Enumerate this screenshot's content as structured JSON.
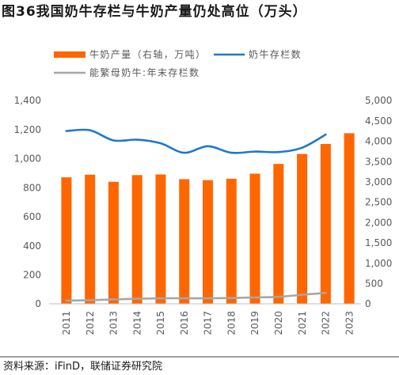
{
  "source": "资料来源：iFinD，联储证券研究院",
  "colors": {
    "axis": "#BFBFBF",
    "divider": "#404040"
  },
  "chart_data": {
    "type": "bar",
    "title": "图36我国奶牛存栏与牛奶产量仍处高位（万头）",
    "categories": [
      "2011",
      "2012",
      "2013",
      "2014",
      "2015",
      "2016",
      "2017",
      "2018",
      "2019",
      "2020",
      "2021",
      "2022",
      "2023"
    ],
    "series": [
      {
        "name": "牛奶产量（右轴，万吨）",
        "type": "bar",
        "axis": "right",
        "color": "#FF6600",
        "values": [
          3110,
          3175,
          3000,
          3165,
          3180,
          3065,
          3040,
          3075,
          3200,
          3440,
          3685,
          3930,
          4195
        ]
      },
      {
        "name": "奶牛存栏数",
        "type": "line",
        "axis": "left",
        "color": "#1F78C8",
        "values": [
          1190,
          1195,
          1125,
          1130,
          1105,
          1040,
          1085,
          1040,
          1048,
          1045,
          1075,
          1165,
          null
        ]
      },
      {
        "name": "能繁母奶牛:年末存栏数",
        "type": "line",
        "axis": "left",
        "color": "#A6A6A6",
        "values": [
          22,
          25,
          30,
          35,
          38,
          38,
          38,
          40,
          44,
          48,
          62,
          75,
          null
        ]
      }
    ],
    "left_axis": {
      "range": [
        0,
        1400
      ],
      "ticks": [
        "0",
        "200",
        "400",
        "600",
        "800",
        "1,000",
        "1,200",
        "1,400"
      ]
    },
    "right_axis": {
      "range": [
        0,
        5000
      ],
      "ticks": [
        "0",
        "500",
        "1,000",
        "1,500",
        "2,000",
        "2,500",
        "3,000",
        "3,500",
        "4,000",
        "4,500",
        "5,000"
      ]
    },
    "grid": false,
    "legend": "top-left"
  }
}
